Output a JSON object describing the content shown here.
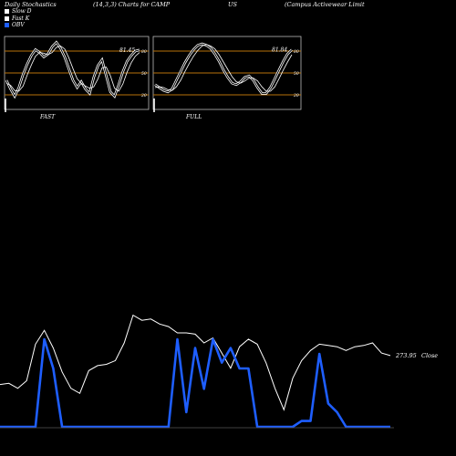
{
  "header": {
    "title": "Daily Stochastics",
    "params": "(14,3,3) Charts for CAMP",
    "symbol_tail": "US",
    "company": "(Campus Activewear Limit"
  },
  "legend": [
    {
      "label": "Slow  D",
      "color": "#ffffff"
    },
    {
      "label": "Fast K",
      "color": "#ffffff"
    },
    {
      "label": "OBV",
      "color": "#1e5eff"
    }
  ],
  "colors": {
    "background": "#000000",
    "grid": "#b8720a",
    "price": "#ffffff",
    "obv": "#1e5eff"
  },
  "chart_data": [
    {
      "type": "line",
      "panel": "FAST",
      "caption": "FAST",
      "last_value_label": "81.45",
      "ylim": [
        0,
        100
      ],
      "yticks": [
        20,
        50,
        80
      ],
      "grid_levels": [
        20,
        50,
        80
      ],
      "series": [
        {
          "name": "Fast K",
          "values": [
            40,
            28,
            18,
            30,
            48,
            62,
            74,
            82,
            78,
            72,
            76,
            86,
            92,
            84,
            72,
            56,
            40,
            30,
            38,
            28,
            22,
            44,
            60,
            68,
            46,
            24,
            18,
            34,
            52,
            66,
            74,
            80,
            81.45
          ]
        },
        {
          "name": "Slow  D",
          "values": [
            36,
            33,
            26,
            25,
            32,
            47,
            61,
            73,
            78,
            77,
            75,
            78,
            85,
            87,
            83,
            71,
            56,
            42,
            36,
            32,
            29,
            31,
            42,
            57,
            58,
            46,
            29,
            25,
            35,
            51,
            64,
            73,
            78
          ]
        }
      ]
    },
    {
      "type": "line",
      "panel": "FULL",
      "caption": "FULL",
      "last_value_label": "81.84",
      "ylim": [
        0,
        100
      ],
      "yticks": [
        20,
        50,
        80
      ],
      "grid_levels": [
        20,
        50,
        80
      ],
      "series": [
        {
          "name": "Fast K",
          "values": [
            34,
            30,
            26,
            24,
            28,
            40,
            52,
            64,
            74,
            82,
            88,
            90,
            88,
            84,
            76,
            66,
            54,
            44,
            36,
            34,
            38,
            44,
            46,
            40,
            30,
            22,
            22,
            30,
            42,
            54,
            66,
            76,
            81.84
          ]
        },
        {
          "name": "Slow  D",
          "values": [
            30,
            31,
            30,
            27,
            26,
            31,
            40,
            52,
            63,
            73,
            81,
            87,
            89,
            87,
            83,
            75,
            65,
            55,
            45,
            38,
            36,
            39,
            43,
            43,
            39,
            31,
            25,
            25,
            31,
            42,
            54,
            65,
            75
          ]
        }
      ]
    },
    {
      "type": "line",
      "panel": "price-obv",
      "last_value_label": "273.95",
      "last_label_suffix": "Close",
      "x": [
        0,
        1,
        2,
        3,
        4,
        5,
        6,
        7,
        8,
        9,
        10,
        11,
        12,
        13,
        14,
        15,
        16,
        17,
        18,
        19,
        20,
        21,
        22,
        23,
        24,
        25,
        26,
        27,
        28,
        29,
        30,
        31,
        32,
        33,
        34,
        35,
        36,
        37,
        38,
        39,
        40,
        41,
        42,
        43,
        44
      ],
      "series": [
        {
          "name": "Close",
          "values": [
            255,
            255,
            253,
            262,
            286,
            302,
            292,
            266,
            257,
            248,
            267,
            271,
            272,
            275,
            290,
            318,
            313,
            314,
            310,
            307,
            300,
            300,
            299,
            290,
            295,
            280,
            265,
            285,
            292,
            288,
            270,
            245,
            225,
            253,
            270,
            278,
            284,
            282,
            281,
            278,
            281,
            282,
            285,
            277,
            274
          ]
        },
        {
          "name": "OBV",
          "values": [
            40,
            40,
            40,
            40,
            40,
            40,
            40,
            40,
            40,
            40,
            40,
            40,
            40,
            40,
            40,
            40,
            40,
            40,
            40,
            40,
            40,
            40,
            40,
            40,
            40,
            40,
            40,
            40,
            40,
            40,
            40,
            40,
            40,
            40,
            40,
            40,
            40,
            40,
            40,
            40,
            40,
            40,
            40,
            40,
            40
          ]
        }
      ],
      "close_line": [
        285,
        288,
        290,
        300,
        305,
        280,
        270,
        262,
        250,
        248,
        270,
        275,
        278,
        300,
        310,
        315,
        312,
        318,
        310,
        305,
        300,
        298,
        296,
        290,
        295,
        280,
        265,
        285,
        290,
        285,
        270,
        245,
        225,
        255,
        270,
        278,
        283,
        282,
        281,
        278,
        281,
        282,
        284,
        276,
        274
      ]
    }
  ],
  "price_series": {
    "close": [
      225,
      226,
      222,
      228,
      257,
      268,
      254,
      235,
      222,
      218,
      236,
      240,
      241,
      244,
      258,
      280,
      276,
      277,
      273,
      271,
      266,
      266,
      265,
      258,
      262,
      250,
      238,
      255,
      261,
      257,
      242,
      222,
      205,
      230,
      244,
      252,
      257,
      256,
      255,
      252,
      255,
      256,
      258,
      250,
      248
    ],
    "obv": [
      0,
      0,
      0,
      0,
      0,
      30,
      20,
      0,
      0,
      0,
      0,
      0,
      0,
      0,
      0,
      0,
      0,
      0,
      0,
      0,
      30,
      5,
      27,
      13,
      30,
      22,
      27,
      20,
      20,
      0,
      0,
      0,
      0,
      0,
      2,
      2,
      25,
      8,
      5,
      0,
      0,
      0,
      0,
      0,
      0
    ]
  }
}
